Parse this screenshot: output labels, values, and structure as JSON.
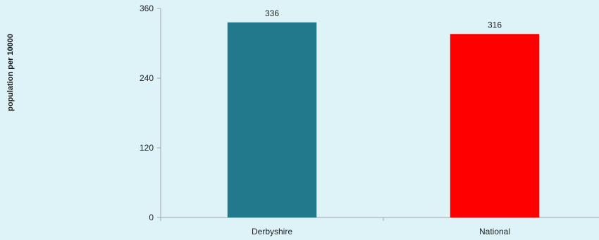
{
  "chart_data": {
    "type": "bar",
    "categories": [
      "Derbyshire",
      "National"
    ],
    "values": [
      336,
      316
    ],
    "value_labels": [
      "336",
      "316"
    ],
    "colors": [
      "#21798b",
      "#ff0000"
    ],
    "title": "",
    "xlabel": "",
    "ylabel": "population per 10000",
    "ylim": [
      0,
      360
    ],
    "yticks": [
      0,
      120,
      240,
      360
    ],
    "ytick_labels": [
      "0",
      "120",
      "240",
      "360"
    ],
    "grid": false,
    "legend": "none"
  },
  "colors": {
    "background": "#ddf3f7",
    "axis": "#a6a6a6"
  }
}
